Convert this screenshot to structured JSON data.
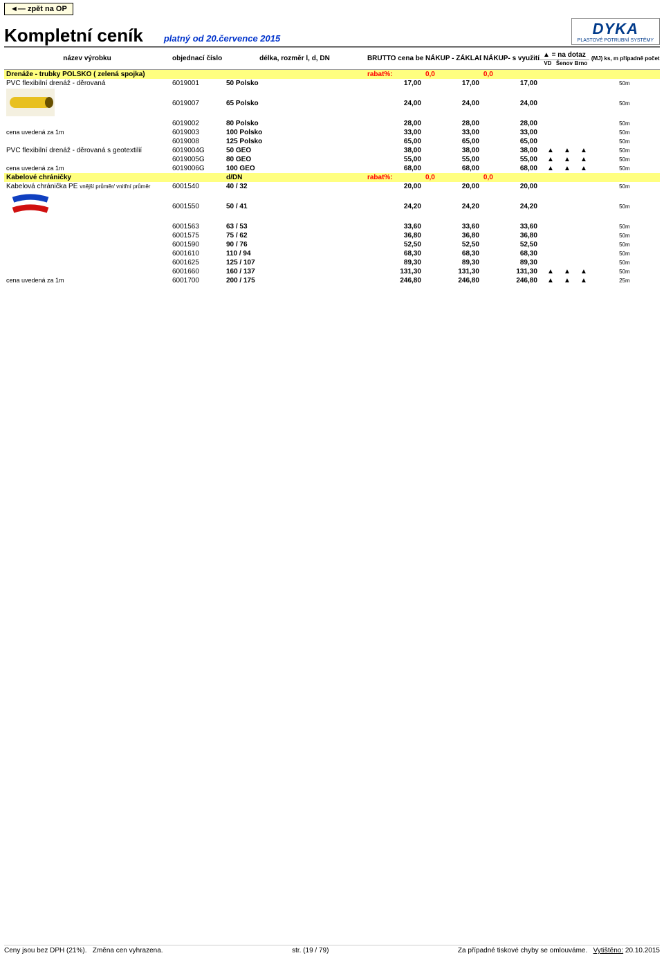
{
  "ui": {
    "back": "◄— zpět na OP",
    "title": "Kompletní ceník",
    "subtitle": "platný od 20.července 2015",
    "logo_main": "DYKA",
    "logo_sub": "PLASTOVÉ POTRUBNÍ SYSTÉMY"
  },
  "headers": {
    "name": "název výrobku",
    "code": "objednací číslo",
    "dim": "délka, rozměr l, d, DN",
    "p1": "BRUTTO cena bez DPH",
    "p2": "NÁKUP - ZÁKLADNÍ rabat",
    "p3": "NÁKUP- s využitím SLEV",
    "dotaz": "▲ = na dotaz",
    "w1": "VD",
    "w2": "Šenov",
    "w3": "Brno",
    "pack": "(MJ) ks, m případně počet v balení"
  },
  "sec1": {
    "title": "Drenáže - trubky POLSKO ( zelená spojka)",
    "rlabel": "rabat%:",
    "r1": "0,0",
    "r2": "0,0"
  },
  "g1": {
    "name": "PVC flexibilní drenáž - děrovaná",
    "note": "cena uvedená za 1m",
    "rows": [
      {
        "code": "6019001",
        "dim": "50 Polsko",
        "p": "17,00",
        "pack": "50m"
      },
      {
        "code": "6019007",
        "dim": "65 Polsko",
        "p": "24,00",
        "pack": "50m"
      },
      {
        "code": "6019002",
        "dim": "80 Polsko",
        "p": "28,00",
        "pack": "50m"
      },
      {
        "code": "6019003",
        "dim": "100 Polsko",
        "p": "33,00",
        "pack": "50m"
      },
      {
        "code": "6019008",
        "dim": "125 Polsko",
        "p": "65,00",
        "pack": "50m"
      }
    ]
  },
  "g2": {
    "name": "PVC flexibilní drenáž - děrovaná s geotextilií",
    "note": "cena uvedená za 1m",
    "rows": [
      {
        "code": "6019004G",
        "dim": "50 GEO",
        "p": "38,00",
        "tri": true,
        "pack": "50m"
      },
      {
        "code": "6019005G",
        "dim": "80 GEO",
        "p": "55,00",
        "tri": true,
        "pack": "50m"
      },
      {
        "code": "6019006G",
        "dim": "100 GEO",
        "p": "68,00",
        "tri": true,
        "pack": "50m"
      }
    ]
  },
  "sec2": {
    "title": "Kabelové chráničky",
    "dim": "d/DN",
    "rlabel": "rabat%:",
    "r1": "0,0",
    "r2": "0,0"
  },
  "g3": {
    "name": "Kabelová chránička PE",
    "namesub": "vnější průměr/ vnitřní průměr",
    "note": "cena uvedená za 1m",
    "rows": [
      {
        "code": "6001540",
        "dim": "40 / 32",
        "p": "20,00",
        "pack": "50m"
      },
      {
        "code": "6001550",
        "dim": "50 / 41",
        "p": "24,20",
        "pack": "50m"
      },
      {
        "code": "6001563",
        "dim": "63 / 53",
        "p": "33,60",
        "pack": "50m"
      },
      {
        "code": "6001575",
        "dim": "75 / 62",
        "p": "36,80",
        "pack": "50m"
      },
      {
        "code": "6001590",
        "dim": "90 / 76",
        "p": "52,50",
        "pack": "50m"
      },
      {
        "code": "6001610",
        "dim": "110 / 94",
        "p": "68,30",
        "pack": "50m"
      },
      {
        "code": "6001625",
        "dim": "125 / 107",
        "p": "89,30",
        "pack": "50m"
      },
      {
        "code": "6001660",
        "dim": "160 / 137",
        "p": "131,30",
        "tri": true,
        "pack": "50m"
      },
      {
        "code": "6001700",
        "dim": "200 / 175",
        "p": "246,80",
        "tri": true,
        "pack": "25m"
      }
    ]
  },
  "footer": {
    "l1": "Ceny jsou bez DPH (21%).",
    "l2": "Změna cen vyhrazena.",
    "mid": "str. (19 / 79)",
    "r1": "Za případné tiskové chyby se omlouváme.",
    "r2lab": "Vytištěno:",
    "r2val": "20.10.2015"
  },
  "tri": "▲"
}
